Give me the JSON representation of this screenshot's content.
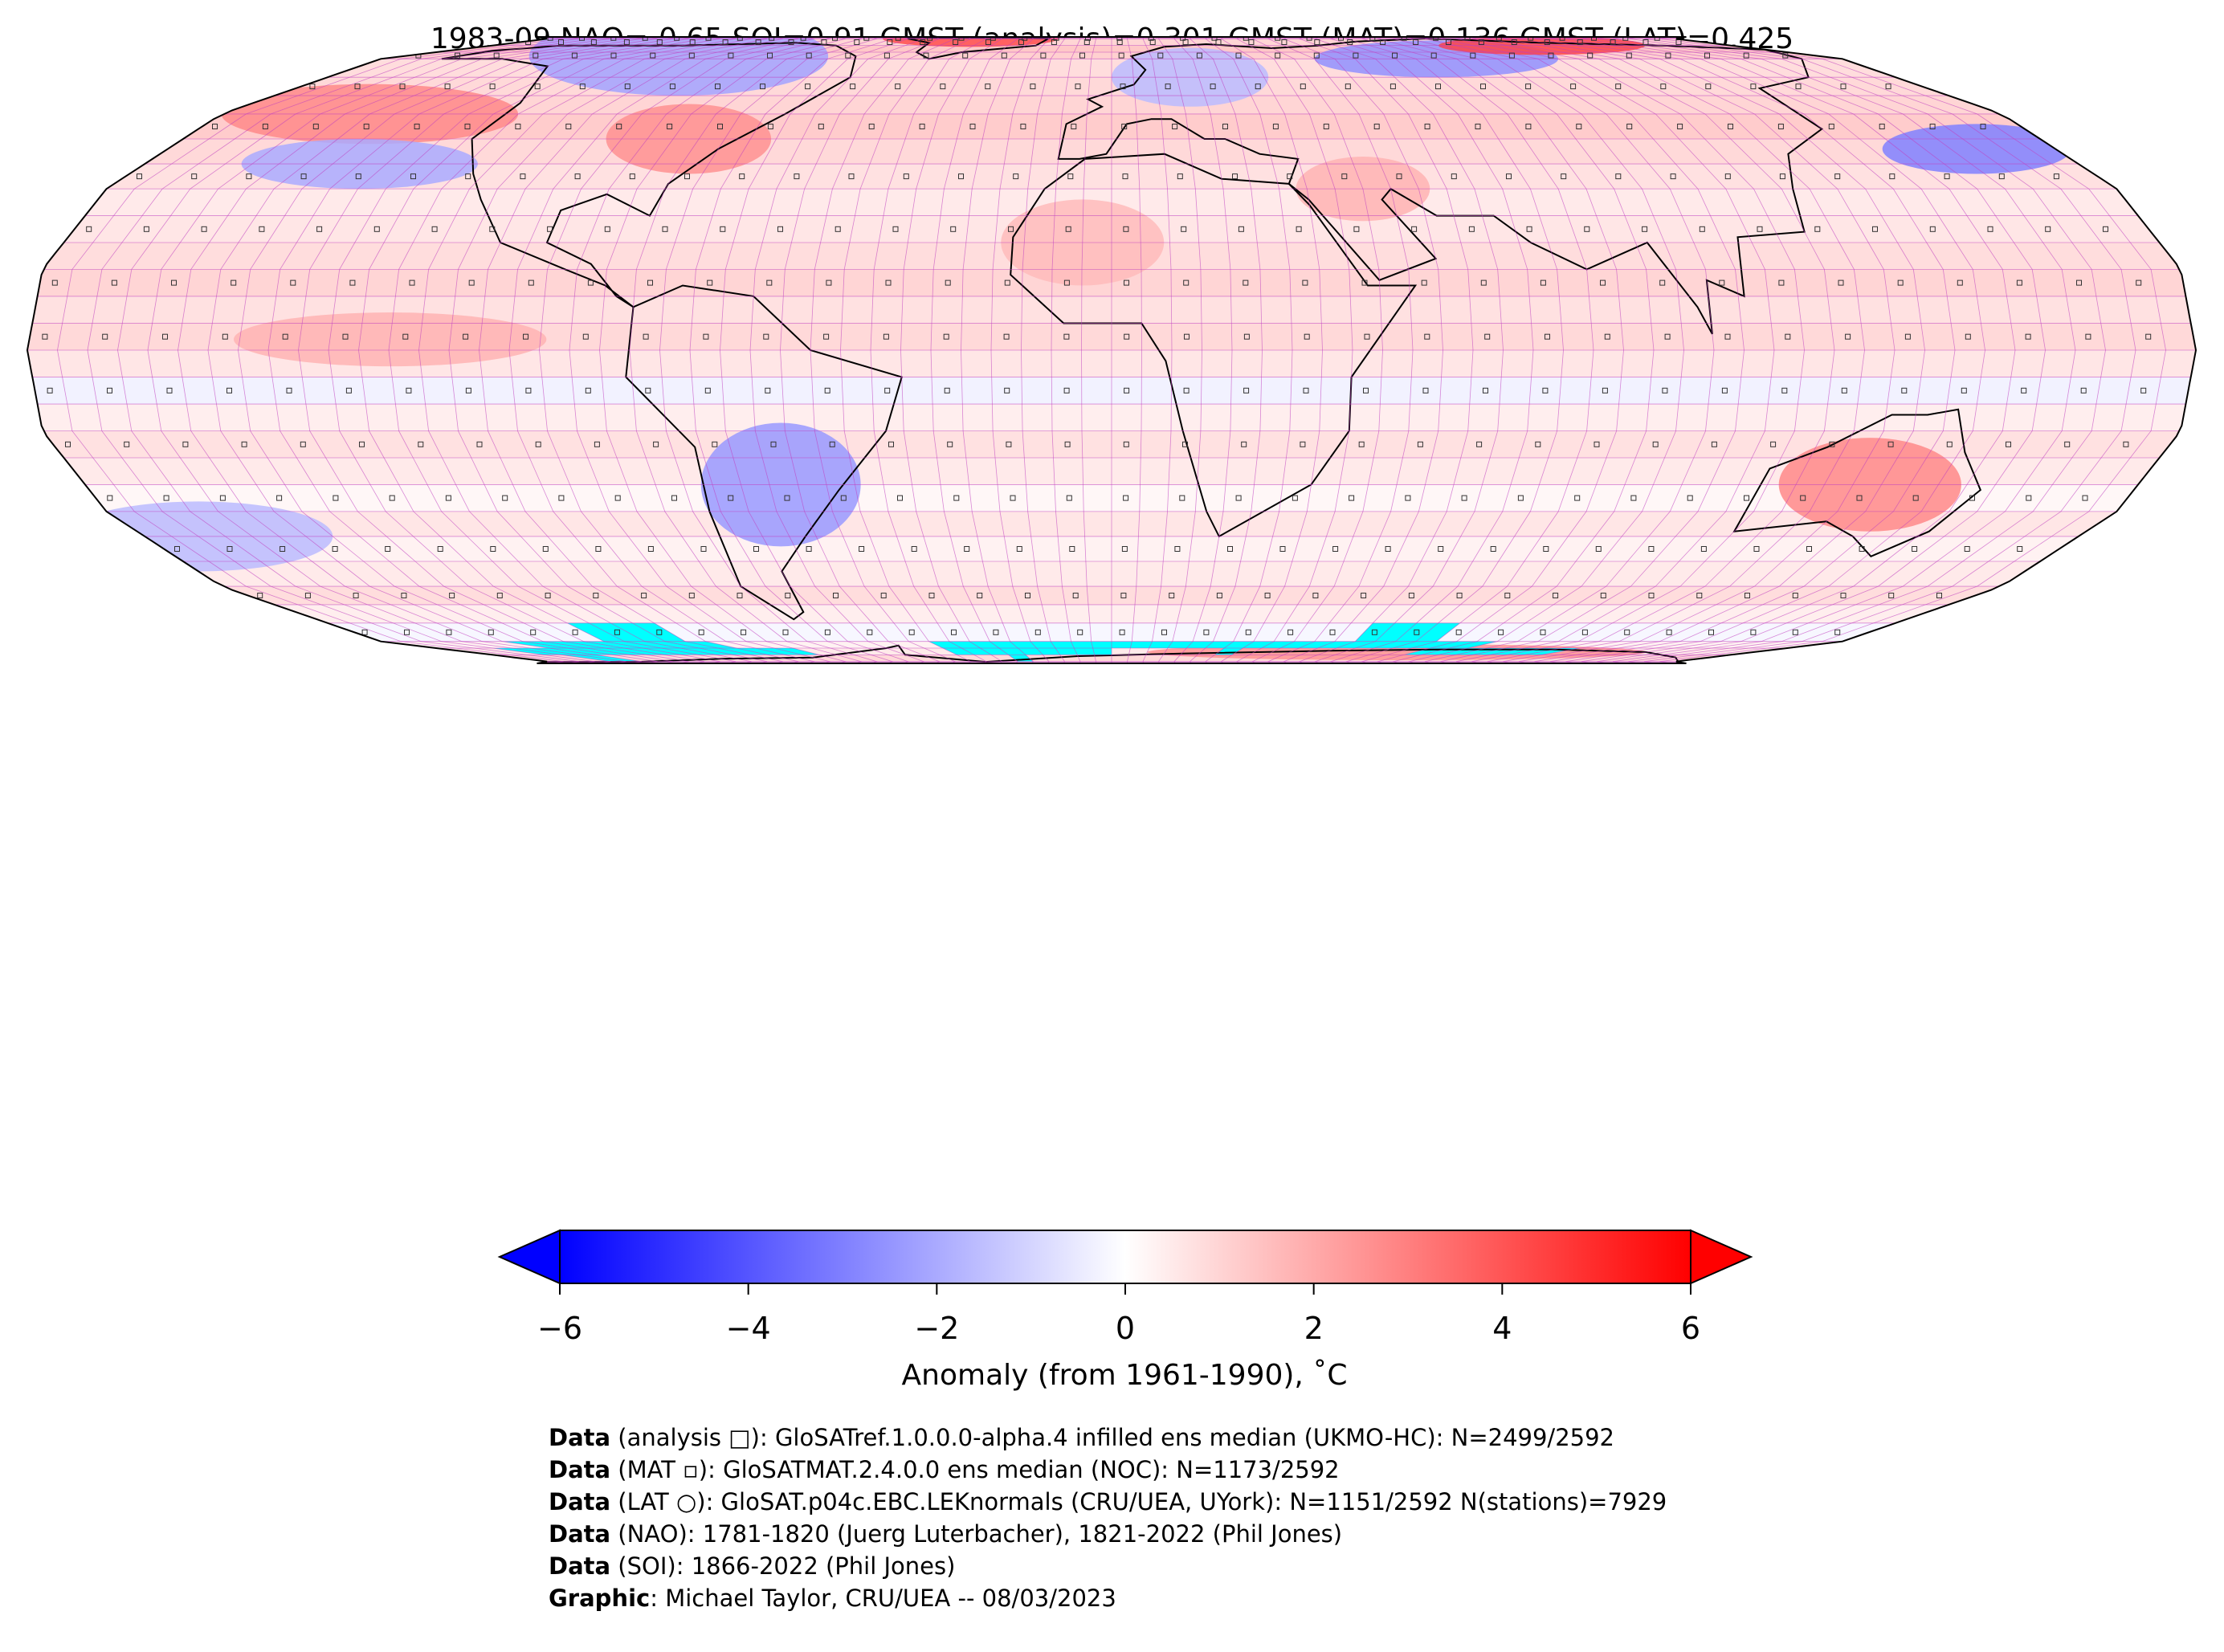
{
  "title": "1983-09 NAO=-0.65 SOI=0.91 GMST (analysis)=0.301 GMST (MAT)=0.136 GMST (LAT)=0.425",
  "colorbar": {
    "ticks": [
      "−6",
      "−4",
      "−2",
      "0",
      "2",
      "4",
      "6"
    ],
    "tick_values": [
      -6,
      -4,
      -2,
      0,
      2,
      4,
      6
    ],
    "range": [
      -6,
      6
    ],
    "extend": "both",
    "low_color": "#0000ff",
    "mid_color": "#ffffff",
    "high_color": "#ff0000",
    "label": "Anomaly (from 1961-1990), ˚C"
  },
  "map": {
    "projection": "Robinson",
    "grid_line_color": "#c040c0",
    "missing_color": "#00ffff",
    "coast_color": "#000000",
    "anomaly_regions": [
      {
        "name": "north-america-north",
        "value": -2.2
      },
      {
        "name": "arctic-atlantic",
        "value": 4.2
      },
      {
        "name": "eastern-us",
        "value": 2.6
      },
      {
        "name": "north-pacific-warm",
        "value": 2.8
      },
      {
        "name": "north-pacific-cool",
        "value": -2.0
      },
      {
        "name": "europe",
        "value": -1.6
      },
      {
        "name": "central-siberia-cool",
        "value": -2.6
      },
      {
        "name": "eastern-siberia-warm",
        "value": 4.4
      },
      {
        "name": "north-west-pacific-cool",
        "value": -3.0
      },
      {
        "name": "sahara",
        "value": 1.6
      },
      {
        "name": "middle-east",
        "value": 1.8
      },
      {
        "name": "east-pacific-warm",
        "value": 1.8
      },
      {
        "name": "south-america-cool",
        "value": -2.4
      },
      {
        "name": "australia",
        "value": 2.8
      },
      {
        "name": "south-pacific-cool",
        "value": -1.6
      },
      {
        "name": "antarctic-warm",
        "value": 2.6
      }
    ]
  },
  "credits": [
    {
      "bold": "Data",
      "text": " (analysis □): GloSATref.1.0.0.0-alpha.4 infilled ens median (UKMO-HC): N=2499/2592"
    },
    {
      "bold": "Data",
      "text": " (MAT ▫): GloSATMAT.2.4.0.0 ens median (NOC): N=1173/2592"
    },
    {
      "bold": "Data",
      "text": " (LAT ○): GloSAT.p04c.EBC.LEKnormals (CRU/UEA, UYork): N=1151/2592 N(stations)=7929"
    },
    {
      "bold": "Data",
      "text": " (NAO): 1781-1820 (Juerg Luterbacher), 1821-2022 (Phil Jones)"
    },
    {
      "bold": "Data",
      "text": " (SOI): 1866-2022 (Phil Jones)"
    },
    {
      "bold": "Graphic",
      "text": ": Michael Taylor, CRU/UEA -- 08/03/2023"
    }
  ]
}
